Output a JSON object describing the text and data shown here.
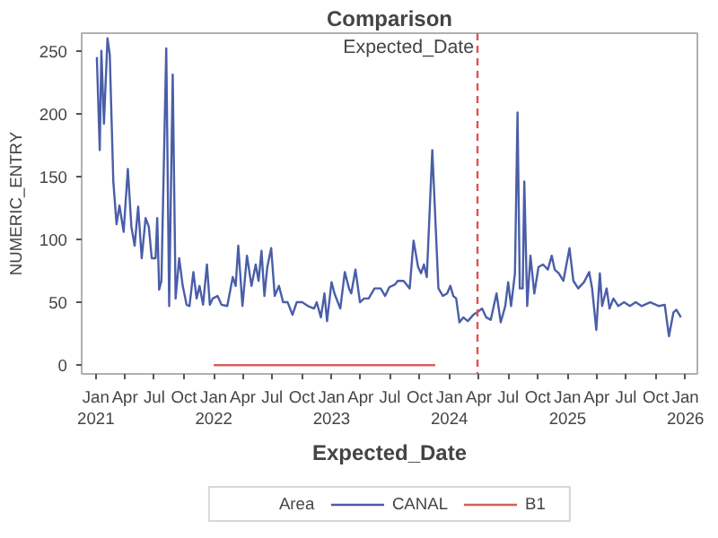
{
  "chart_data": {
    "type": "line",
    "title": "Comparison",
    "xlabel": "Expected_Date",
    "ylabel": "NUMERIC_ENTRY",
    "legend_title": "Area",
    "legend": "bottom",
    "grid": false,
    "line_style": "solid",
    "marker": "none",
    "xlim": [
      "2020-11-18",
      "2026-02-07"
    ],
    "ylim": [
      -7,
      264
    ],
    "xticks": [
      {
        "value": "2021-01-01",
        "label": "Jan\n2021"
      },
      {
        "value": "2021-04-01",
        "label": "Apr"
      },
      {
        "value": "2021-07-01",
        "label": "Jul"
      },
      {
        "value": "2021-10-01",
        "label": "Oct"
      },
      {
        "value": "2022-01-01",
        "label": "Jan\n2022"
      },
      {
        "value": "2022-04-01",
        "label": "Apr"
      },
      {
        "value": "2022-07-01",
        "label": "Jul"
      },
      {
        "value": "2022-10-01",
        "label": "Oct"
      },
      {
        "value": "2023-01-01",
        "label": "Jan\n2023"
      },
      {
        "value": "2023-04-01",
        "label": "Apr"
      },
      {
        "value": "2023-07-01",
        "label": "Jul"
      },
      {
        "value": "2023-10-01",
        "label": "Oct"
      },
      {
        "value": "2024-01-01",
        "label": "Jan\n2024"
      },
      {
        "value": "2024-04-01",
        "label": "Apr"
      },
      {
        "value": "2024-07-01",
        "label": "Jul"
      },
      {
        "value": "2024-10-01",
        "label": "Oct"
      },
      {
        "value": "2025-01-01",
        "label": "Jan\n2025"
      },
      {
        "value": "2025-04-01",
        "label": "Apr"
      },
      {
        "value": "2025-07-01",
        "label": "Jul"
      },
      {
        "value": "2025-10-01",
        "label": "Oct"
      },
      {
        "value": "2026-01-01",
        "label": "Jan\n2026"
      }
    ],
    "yticks": [
      0,
      50,
      100,
      150,
      200,
      250
    ],
    "ref_lines": [
      {
        "axis": "x",
        "value": "2024-03-28",
        "label": "Expected_Date",
        "color": "#e05050",
        "line_style": "dashed"
      }
    ],
    "series": [
      {
        "name": "CANAL",
        "color": "#4a5ea8",
        "x": [
          "2021-01-04",
          "2021-01-13",
          "2021-01-18",
          "2021-01-26",
          "2021-02-06",
          "2021-02-13",
          "2021-02-24",
          "2021-03-06",
          "2021-03-15",
          "2021-03-28",
          "2021-04-10",
          "2021-04-21",
          "2021-05-01",
          "2021-05-12",
          "2021-05-23",
          "2021-06-04",
          "2021-06-14",
          "2021-06-23",
          "2021-07-05",
          "2021-07-10",
          "2021-07-16",
          "2021-07-23",
          "2021-08-07",
          "2021-08-16",
          "2021-08-27",
          "2021-09-05",
          "2021-09-16",
          "2021-09-27",
          "2021-10-09",
          "2021-10-18",
          "2021-10-30",
          "2021-11-09",
          "2021-11-18",
          "2021-11-29",
          "2021-12-11",
          "2021-12-20",
          "2021-12-29",
          "2022-01-13",
          "2022-01-25",
          "2022-02-12",
          "2022-03-01",
          "2022-03-10",
          "2022-03-18",
          "2022-03-31",
          "2022-04-14",
          "2022-04-28",
          "2022-05-11",
          "2022-05-20",
          "2022-05-29",
          "2022-06-07",
          "2022-06-16",
          "2022-06-28",
          "2022-07-09",
          "2022-07-22",
          "2022-08-04",
          "2022-08-18",
          "2022-09-02",
          "2022-09-15",
          "2022-10-02",
          "2022-10-20",
          "2022-11-08",
          "2022-11-16",
          "2022-11-29",
          "2022-12-10",
          "2022-12-18",
          "2023-01-01",
          "2023-01-10",
          "2023-01-28",
          "2023-02-11",
          "2023-02-24",
          "2023-03-03",
          "2023-03-16",
          "2023-03-30",
          "2023-04-12",
          "2023-04-26",
          "2023-05-14",
          "2023-06-02",
          "2023-06-16",
          "2023-06-29",
          "2023-07-16",
          "2023-07-25",
          "2023-08-12",
          "2023-08-31",
          "2023-09-12",
          "2023-09-26",
          "2023-10-05",
          "2023-10-14",
          "2023-10-23",
          "2023-11-09",
          "2023-11-28",
          "2023-12-12",
          "2023-12-25",
          "2024-01-04",
          "2024-01-13",
          "2024-01-22",
          "2024-02-01",
          "2024-02-13",
          "2024-02-27",
          "2024-03-15",
          "2024-03-27",
          "2024-04-11",
          "2024-04-24",
          "2024-05-08",
          "2024-05-26",
          "2024-06-08",
          "2024-06-22",
          "2024-07-01",
          "2024-07-10",
          "2024-07-22",
          "2024-07-30",
          "2024-08-06",
          "2024-08-15",
          "2024-08-20",
          "2024-08-29",
          "2024-09-08",
          "2024-09-20",
          "2024-10-03",
          "2024-10-17",
          "2024-11-01",
          "2024-11-13",
          "2024-11-22",
          "2024-12-05",
          "2024-12-19",
          "2025-01-07",
          "2025-01-19",
          "2025-02-03",
          "2025-02-21",
          "2025-03-09",
          "2025-03-18",
          "2025-03-31",
          "2025-04-11",
          "2025-04-18",
          "2025-05-02",
          "2025-05-11",
          "2025-05-23",
          "2025-06-07",
          "2025-06-25",
          "2025-07-13",
          "2025-07-31",
          "2025-08-18",
          "2025-09-14",
          "2025-10-11",
          "2025-10-29",
          "2025-11-11",
          "2025-11-25",
          "2025-12-04",
          "2025-12-18"
        ],
        "values": [
          245,
          171,
          250,
          192,
          260,
          247,
          146,
          112,
          127,
          106,
          156,
          110,
          95,
          126,
          85,
          117,
          110,
          85,
          85,
          117,
          60,
          67,
          252,
          47,
          231,
          53,
          85,
          63,
          48,
          47,
          74,
          53,
          63,
          48,
          80,
          48,
          53,
          55,
          48,
          47,
          70,
          63,
          95,
          47,
          87,
          63,
          80,
          67,
          91,
          55,
          78,
          93,
          55,
          63,
          50,
          50,
          40,
          50,
          50,
          47,
          45,
          50,
          38,
          57,
          35,
          66,
          57,
          45,
          74,
          61,
          57,
          76,
          50,
          53,
          53,
          61,
          61,
          55,
          62,
          64,
          67,
          67,
          61,
          99,
          78,
          73,
          80,
          70,
          171,
          61,
          55,
          57,
          63,
          55,
          53,
          34,
          38,
          35,
          40,
          42,
          45,
          38,
          36,
          57,
          34,
          47,
          66,
          47,
          73,
          201,
          61,
          61,
          146,
          47,
          87,
          57,
          78,
          80,
          76,
          87,
          76,
          73,
          67,
          93,
          67,
          61,
          66,
          74,
          61,
          28,
          73,
          47,
          61,
          45,
          53,
          47,
          50,
          47,
          50,
          47,
          50,
          47,
          48,
          23,
          42,
          44,
          38
        ]
      },
      {
        "name": "B1",
        "color": "#d0605e",
        "x": [
          "2022-01-01",
          "2023-11-18"
        ],
        "values": [
          0,
          0
        ]
      }
    ]
  }
}
